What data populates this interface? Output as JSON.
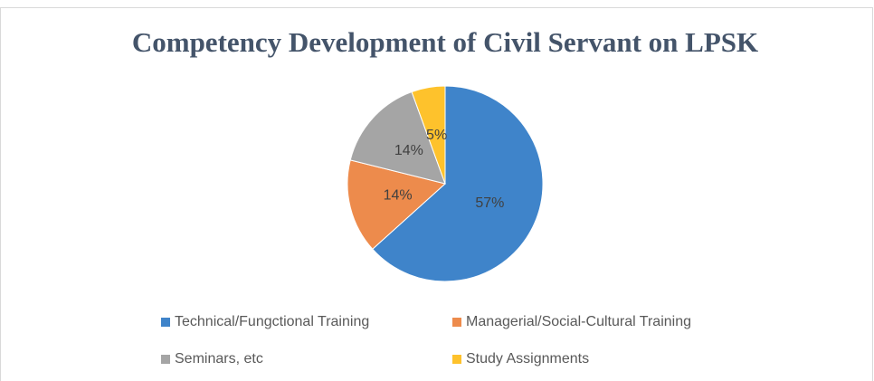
{
  "chart_data": {
    "type": "pie",
    "title": "Competency Development of Civil Servant on LPSK",
    "categories": [
      "Technical/Fungctional Training",
      "Managerial/Social-Cultural Training",
      "Seminars, etc",
      "Study Assignments"
    ],
    "values": [
      57,
      14,
      14,
      5
    ],
    "value_labels": [
      "57%",
      "14%",
      "14%",
      "5%"
    ],
    "colors": [
      "#3f84ca",
      "#ed8b4c",
      "#a5a5a5",
      "#fec22c"
    ],
    "legend": "bottom"
  }
}
